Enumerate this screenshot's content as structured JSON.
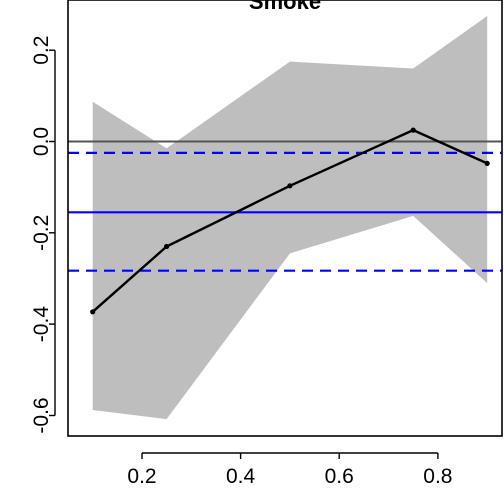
{
  "chart_data": {
    "type": "line",
    "title": "Smoke",
    "xlabel": "",
    "ylabel": "",
    "xlim": [
      0.05,
      0.93
    ],
    "ylim": [
      -0.645,
      0.31
    ],
    "x_ticks": [
      0.2,
      0.4,
      0.6,
      0.8
    ],
    "x_tick_labels": [
      "0.2",
      "0.4",
      "0.6",
      "0.8"
    ],
    "y_ticks": [
      -0.6,
      -0.4,
      -0.2,
      0.0,
      0.2
    ],
    "y_tick_labels": [
      "-0.6",
      "-0.4",
      "-0.2",
      "0.0",
      "0.2"
    ],
    "grid": false,
    "legend": "none",
    "band": {
      "x": [
        0.1,
        0.25,
        0.5,
        0.75,
        0.9
      ],
      "lower": [
        -0.588,
        -0.608,
        -0.245,
        -0.163,
        -0.31
      ],
      "upper": [
        0.087,
        -0.015,
        0.175,
        0.16,
        0.275
      ],
      "color": "#bebebe"
    },
    "series": [
      {
        "x": [
          0.1,
          0.25,
          0.5,
          0.75,
          0.9
        ],
        "values": [
          -0.373,
          -0.23,
          -0.097,
          0.025,
          -0.048
        ],
        "color": "#000000"
      }
    ],
    "reference_lines": [
      {
        "y": 0.0,
        "color": "#555555",
        "style": "solid"
      },
      {
        "y": -0.155,
        "color": "#0000ff",
        "style": "solid"
      },
      {
        "y": -0.025,
        "color": "#0000ff",
        "style": "dashed"
      },
      {
        "y": -0.283,
        "color": "#0000ff",
        "style": "dashed"
      }
    ]
  }
}
